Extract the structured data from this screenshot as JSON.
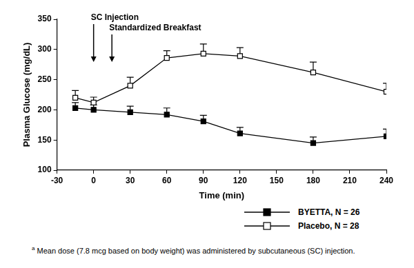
{
  "chart_data": {
    "type": "line",
    "x_label": "Time (min)",
    "y_label": "Plasma Glucose (mg/dL)",
    "x": [
      -15,
      0,
      30,
      60,
      90,
      120,
      180,
      240
    ],
    "series": [
      {
        "name": "BYETTA, N = 26",
        "color": "#000000",
        "marker": "filled_square",
        "line_style": "solid",
        "values": [
          203,
          200,
          196,
          192,
          181,
          161,
          145,
          156
        ],
        "errors": [
          9,
          8,
          10,
          11,
          10,
          10,
          10,
          12
        ]
      },
      {
        "name": "Placebo, N = 28",
        "color": "#000000",
        "marker": "open_square",
        "line_style": "solid",
        "values": [
          220,
          212,
          240,
          286,
          293,
          289,
          262,
          230
        ],
        "errors": [
          12,
          9,
          14,
          12,
          16,
          14,
          17,
          14
        ]
      }
    ],
    "xlim": [
      -30,
      240
    ],
    "xticks": [
      -30,
      0,
      30,
      60,
      90,
      120,
      150,
      180,
      210,
      240
    ],
    "ylim": [
      100,
      350
    ],
    "yticks": [
      100,
      150,
      200,
      250,
      300,
      350
    ],
    "grid": false,
    "legend": "bottom",
    "annotations": [
      {
        "x": 0,
        "text": "SC Injection"
      },
      {
        "x": 15,
        "text": "Standardized Breakfast"
      }
    ],
    "footnote": {
      "mark": "a",
      "text": "Mean dose (7.8 mcg based on body weight) was administered by subcutaneous (SC) injection."
    }
  }
}
